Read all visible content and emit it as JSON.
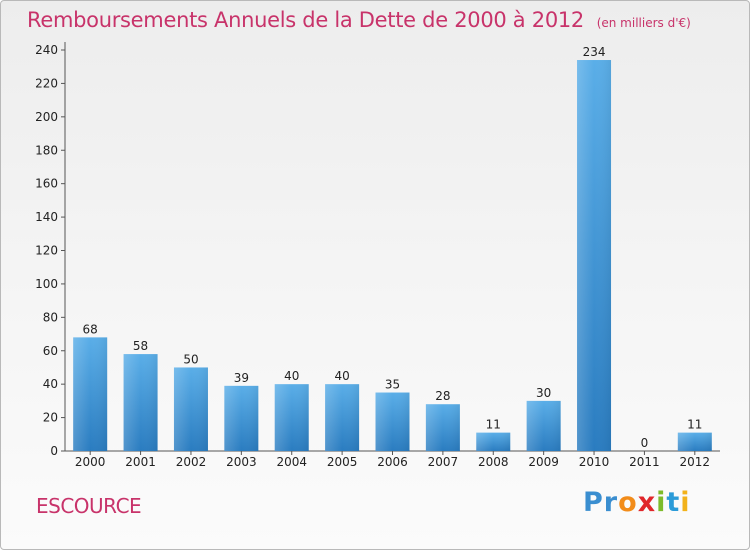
{
  "chart_data": {
    "type": "bar",
    "title": "Remboursements Annuels de la Dette de 2000 à 2012",
    "subtitle": "(en milliers d'€)",
    "categories": [
      "2000",
      "2001",
      "2002",
      "2003",
      "2004",
      "2005",
      "2006",
      "2007",
      "2008",
      "2009",
      "2010",
      "2011",
      "2012"
    ],
    "values": [
      68,
      58,
      50,
      39,
      40,
      40,
      35,
      28,
      11,
      30,
      234,
      0,
      11
    ],
    "ylim": [
      0,
      240
    ],
    "yticks": [
      0,
      20,
      40,
      60,
      80,
      100,
      120,
      140,
      160,
      180,
      200,
      220,
      240
    ],
    "grid": false,
    "bar_color": "#3b92d6"
  },
  "commune": "ESCOURCE",
  "logo": {
    "letters": [
      "P",
      "r",
      "o",
      "x",
      "i",
      "t",
      "i"
    ],
    "colors": [
      "#3a8ed0",
      "#3a8ed0",
      "#f28c1a",
      "#e0262a",
      "#7dbb2a",
      "#2b9bd8",
      "#f2b21a"
    ]
  }
}
